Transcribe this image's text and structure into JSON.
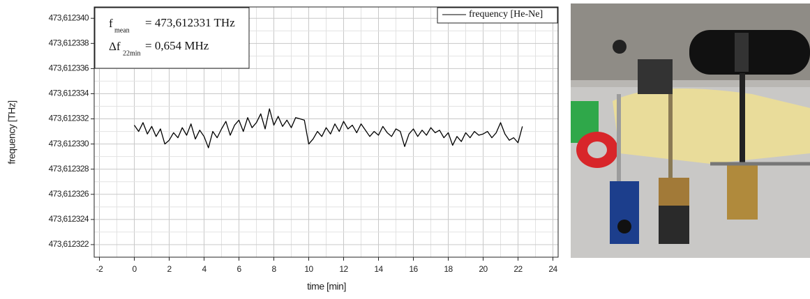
{
  "chart_data": {
    "type": "line",
    "x_label": "time [min]",
    "y_label": "frequency [THz]",
    "annotations": [
      {
        "symbol": "f",
        "subscript": "mean",
        "text": "= 473,612331 THz"
      },
      {
        "symbol": "Δf",
        "subscript": "22min",
        "text": "= 0,654 MHz"
      }
    ],
    "xlim": [
      -2.3,
      24.3
    ],
    "xticks": [
      -2,
      0,
      2,
      4,
      6,
      8,
      10,
      12,
      14,
      16,
      18,
      20,
      22,
      24
    ],
    "ylim": [
      473.612321,
      473.6123409
    ],
    "yticks": [
      {
        "value": 473.612322,
        "label": "473,612322"
      },
      {
        "value": 473.612324,
        "label": "473,612324"
      },
      {
        "value": 473.612326,
        "label": "473,612326"
      },
      {
        "value": 473.612328,
        "label": "473,612328"
      },
      {
        "value": 473.61233,
        "label": "473,612330"
      },
      {
        "value": 473.612332,
        "label": "473,612332"
      },
      {
        "value": 473.612334,
        "label": "473,612334"
      },
      {
        "value": 473.612336,
        "label": "473,612336"
      },
      {
        "value": 473.612338,
        "label": "473,612338"
      },
      {
        "value": 473.61234,
        "label": "473,612340"
      }
    ],
    "grid": true,
    "legend_position": "top-right",
    "series": [
      {
        "name": "frequency [He-Ne]",
        "color": "#000000",
        "x": [
          0,
          0.25,
          0.5,
          0.75,
          1,
          1.25,
          1.5,
          1.75,
          2,
          2.25,
          2.5,
          2.75,
          3,
          3.25,
          3.5,
          3.75,
          4,
          4.25,
          4.5,
          4.75,
          5,
          5.25,
          5.5,
          5.75,
          6,
          6.25,
          6.5,
          6.75,
          7,
          7.25,
          7.5,
          7.75,
          8,
          8.25,
          8.5,
          8.75,
          9,
          9.25,
          9.5,
          9.75,
          10,
          10.25,
          10.5,
          10.75,
          11,
          11.25,
          11.5,
          11.75,
          12,
          12.25,
          12.5,
          12.75,
          13,
          13.25,
          13.5,
          13.75,
          14,
          14.25,
          14.5,
          14.75,
          15,
          15.25,
          15.5,
          15.75,
          16,
          16.25,
          16.5,
          16.75,
          17,
          17.25,
          17.5,
          17.75,
          18,
          18.25,
          18.5,
          18.75,
          19,
          19.25,
          19.5,
          19.75,
          20,
          20.25,
          20.5,
          20.75,
          21,
          21.25,
          21.5,
          21.75,
          22,
          22.25
        ],
        "values": [
          473.6123315,
          473.612331,
          473.6123317,
          473.6123308,
          473.6123314,
          473.6123306,
          473.6123312,
          473.61233,
          473.6123303,
          473.6123309,
          473.6123305,
          473.6123313,
          473.6123307,
          473.6123316,
          473.6123304,
          473.6123311,
          473.6123306,
          473.6123297,
          473.612331,
          473.6123305,
          473.6123312,
          473.6123318,
          473.6123307,
          473.6123315,
          473.6123319,
          473.612331,
          473.6123321,
          473.6123313,
          473.6123317,
          473.6123324,
          473.6123312,
          473.6123328,
          473.6123315,
          473.6123322,
          473.6123314,
          473.6123319,
          473.6123313,
          473.6123321,
          473.612332,
          473.6123319,
          473.61233,
          473.6123304,
          473.612331,
          473.6123306,
          473.6123313,
          473.6123308,
          473.6123316,
          473.612331,
          473.6123318,
          473.6123312,
          473.6123315,
          473.6123309,
          473.6123316,
          473.6123311,
          473.6123306,
          473.612331,
          473.6123307,
          473.6123314,
          473.6123309,
          473.6123306,
          473.6123312,
          473.612331,
          473.6123298,
          473.6123308,
          473.6123312,
          473.6123306,
          473.6123311,
          473.6123307,
          473.6123313,
          473.6123309,
          473.6123311,
          473.6123305,
          473.6123309,
          473.6123299,
          473.6123306,
          473.6123302,
          473.6123309,
          473.6123305,
          473.612331,
          473.6123307,
          473.6123308,
          473.612331,
          473.6123305,
          473.6123309,
          473.6123317,
          473.6123308,
          473.6123303,
          473.6123305,
          473.6123301,
          473.6123314
        ]
      }
    ]
  }
}
